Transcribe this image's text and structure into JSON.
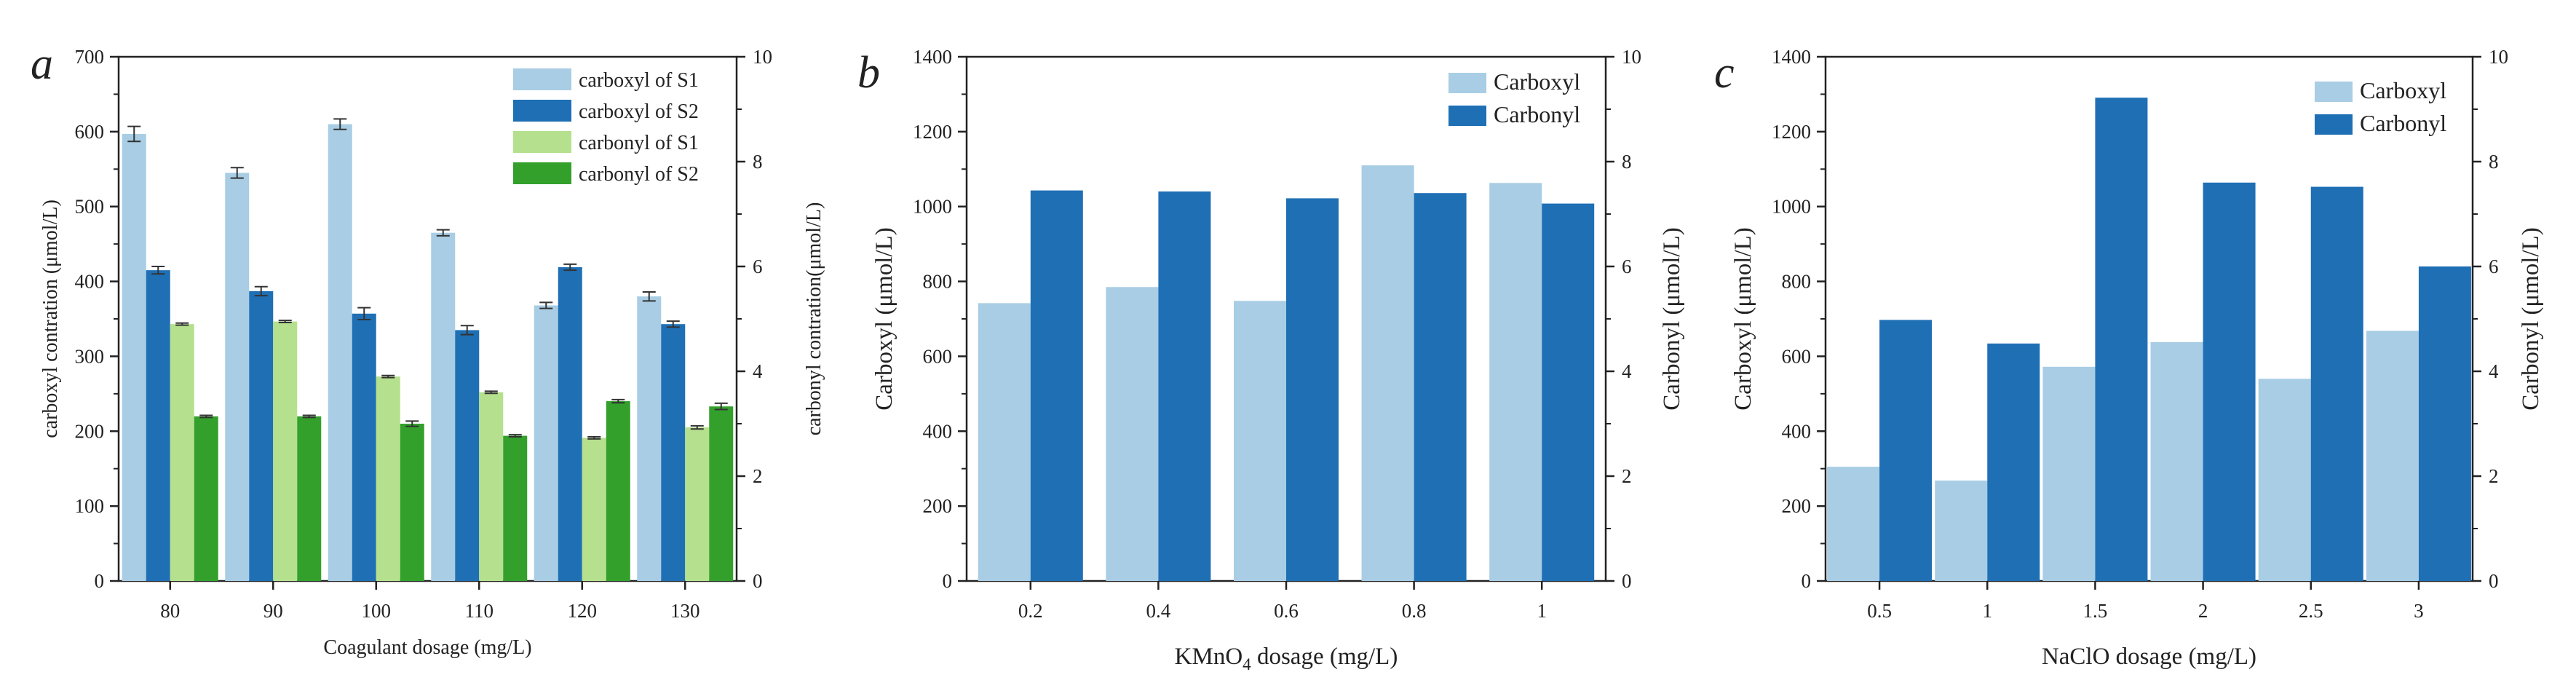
{
  "chart_data": [
    {
      "panel": "a",
      "type": "bar",
      "categories": [
        "80",
        "90",
        "100",
        "110",
        "120",
        "130"
      ],
      "xlabel": "Coagulant dosage (mg/L)",
      "ylabel": "carboxyl contration (μmol/L)",
      "ylabel_right": "carbonyl contration(μmol/L)",
      "ylim": [
        0,
        700
      ],
      "ylim_right": [
        0,
        10
      ],
      "yticks": [
        "0",
        "100",
        "200",
        "300",
        "400",
        "500",
        "600",
        "700"
      ],
      "yticks_right": [
        "0",
        "2",
        "4",
        "6",
        "8",
        "10"
      ],
      "legend_position": "top-right",
      "series": [
        {
          "name": "carboxyl of S1",
          "axis": "left",
          "color": "#a8cde4",
          "values": [
            597,
            545,
            610,
            465,
            368,
            380
          ],
          "errors": [
            10,
            7,
            7,
            4,
            4,
            6
          ]
        },
        {
          "name": "carboxyl of S2",
          "axis": "left",
          "color": "#1f6fb5",
          "values": [
            415,
            387,
            357,
            335,
            419,
            343
          ],
          "errors": [
            5,
            6,
            8,
            6,
            4,
            4
          ]
        },
        {
          "name": "carbonyl of S1",
          "axis": "right",
          "color": "#b5e08d",
          "values": [
            4.9,
            4.95,
            3.9,
            3.6,
            2.73,
            2.93
          ],
          "errors": [
            0.02,
            0.02,
            0.02,
            0.02,
            0.02,
            0.03
          ]
        },
        {
          "name": "carbonyl of S2",
          "axis": "right",
          "color": "#33a02c",
          "values": [
            3.14,
            3.14,
            3.0,
            2.77,
            3.43,
            3.33
          ],
          "errors": [
            0.02,
            0.02,
            0.05,
            0.02,
            0.03,
            0.06
          ]
        }
      ]
    },
    {
      "panel": "b",
      "type": "bar",
      "categories": [
        "0.2",
        "0.4",
        "0.6",
        "0.8",
        "1"
      ],
      "xlabel_main": "KMnO",
      "xlabel_sub": "4",
      "xlabel_rest": " dosage (mg/L)",
      "ylabel": "Carboxyl (μmol/L)",
      "ylabel_right": "Carbonyl (μmol/L)",
      "ylim": [
        0,
        1400
      ],
      "ylim_right": [
        0,
        10
      ],
      "yticks": [
        "0",
        "200",
        "400",
        "600",
        "800",
        "1000",
        "1200",
        "1400"
      ],
      "yticks_right": [
        "0",
        "2",
        "4",
        "6",
        "8",
        "10"
      ],
      "legend_position": "top-right",
      "series": [
        {
          "name": "Carboxyl",
          "axis": "left",
          "color": "#a8cde4",
          "values": [
            742,
            785,
            748,
            1110,
            1063
          ]
        },
        {
          "name": "Carbonyl",
          "axis": "right",
          "color": "#1f6fb5",
          "values": [
            7.45,
            7.43,
            7.3,
            7.4,
            7.2
          ]
        }
      ]
    },
    {
      "panel": "c",
      "type": "bar",
      "categories": [
        "0.5",
        "1",
        "1.5",
        "2",
        "2.5",
        "3"
      ],
      "xlabel": "NaClO dosage (mg/L)",
      "ylabel": "Carboxyl (μmol/L)",
      "ylabel_right": "Carbonyl (μmol/L)",
      "ylim": [
        0,
        1400
      ],
      "ylim_right": [
        0,
        10
      ],
      "yticks": [
        "0",
        "200",
        "400",
        "600",
        "800",
        "1000",
        "1200",
        "1400"
      ],
      "yticks_right": [
        "0",
        "2",
        "4",
        "6",
        "8",
        "10"
      ],
      "legend_position": "top-right",
      "series": [
        {
          "name": "Carboxyl",
          "axis": "left",
          "color": "#a8cde4",
          "values": [
            305,
            268,
            572,
            638,
            540,
            668
          ]
        },
        {
          "name": "Carbonyl",
          "axis": "right",
          "color": "#1f6fb5",
          "values": [
            4.98,
            4.53,
            9.22,
            7.6,
            7.52,
            6.0
          ]
        }
      ]
    }
  ]
}
